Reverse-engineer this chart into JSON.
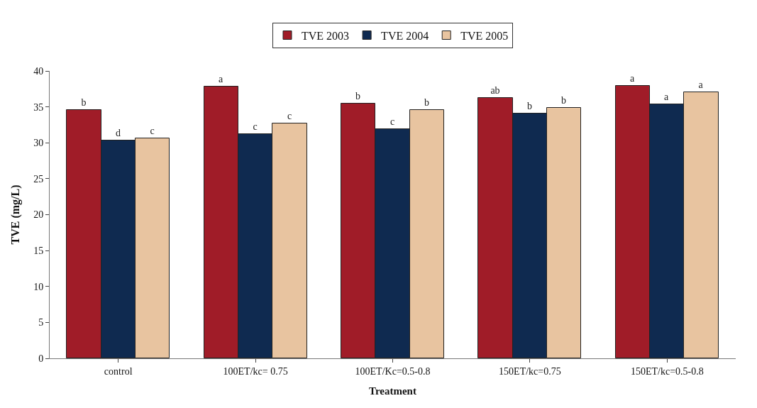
{
  "chart_data": {
    "type": "bar",
    "xlabel": "Treatment",
    "ylabel": "TVE (mg/L)",
    "categories": [
      "control",
      "100ET/kc= 0.75",
      "100ET/Kc=0.5-0.8",
      "150ET/kc=0.75",
      "150ET/kc=0.5-0.8"
    ],
    "series": [
      {
        "name": "TVE 2003",
        "color": "#a01c28",
        "values": [
          34.6,
          37.8,
          35.5,
          36.2,
          37.9
        ],
        "value_labels": [
          "b",
          "a",
          "b",
          "ab",
          "a"
        ]
      },
      {
        "name": "TVE 2004",
        "color": "#0f2a50",
        "values": [
          30.3,
          31.2,
          31.9,
          34.1,
          35.4
        ],
        "value_labels": [
          "d",
          "c",
          "c",
          "b",
          "a"
        ]
      },
      {
        "name": "TVE 2005",
        "color": "#e8c4a0",
        "values": [
          30.6,
          32.7,
          34.6,
          34.9,
          37.0
        ],
        "value_labels": [
          "c",
          "c",
          "b",
          "b",
          "a"
        ]
      }
    ],
    "ylim": [
      0,
      40
    ],
    "yticks": [
      0,
      5,
      10,
      15,
      20,
      25,
      30,
      35,
      40
    ],
    "legend": "top"
  }
}
